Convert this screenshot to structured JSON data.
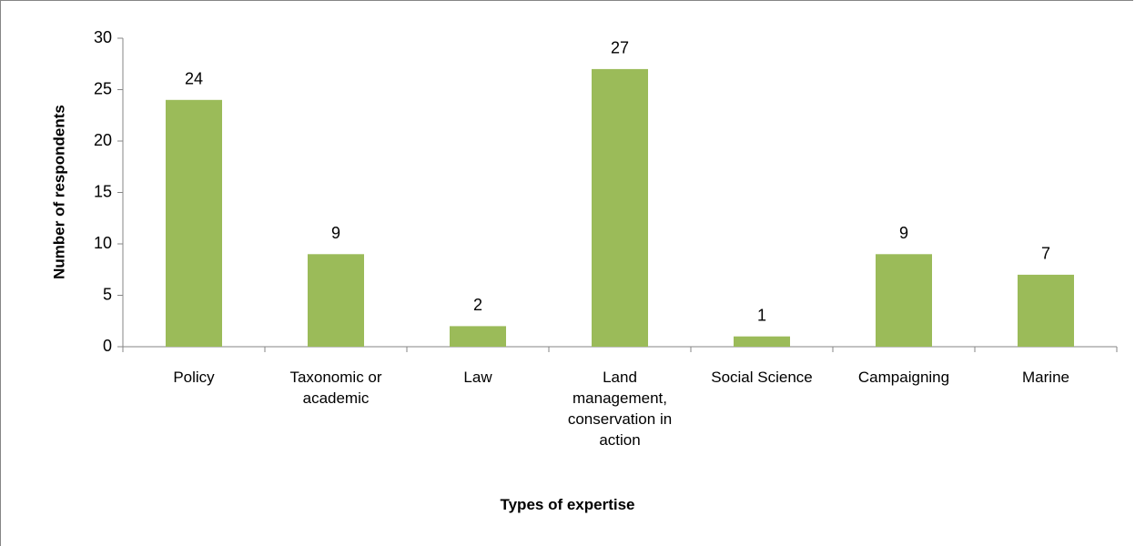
{
  "chart_data": {
    "type": "bar",
    "categories": [
      "Policy",
      "Taxonomic or academic",
      "Law",
      "Land management, conservation in action",
      "Social Science",
      "Campaigning",
      "Marine"
    ],
    "values": [
      24,
      9,
      2,
      27,
      1,
      9,
      7
    ],
    "color": "#9bbb59",
    "ylim": [
      0,
      30
    ],
    "yticks": [
      0,
      5,
      10,
      15,
      20,
      25,
      30
    ],
    "xlabel": "Types of expertise",
    "ylabel": "Number of respondents",
    "grid": false
  }
}
